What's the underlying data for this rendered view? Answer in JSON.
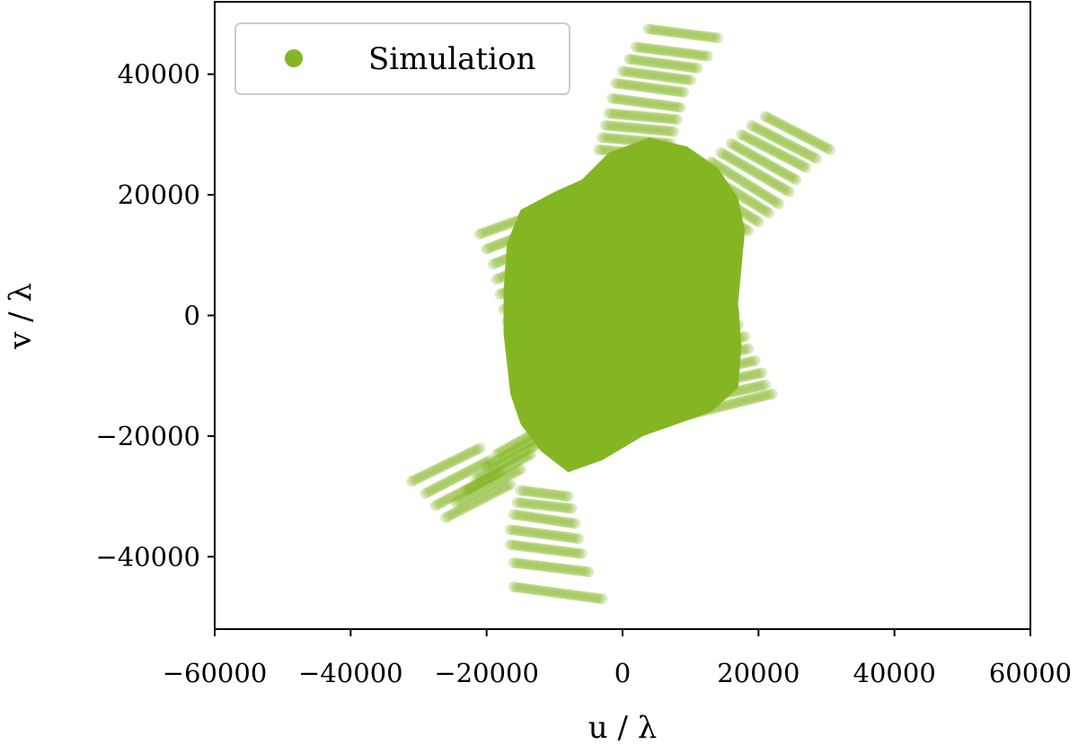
{
  "chart_data": {
    "type": "scatter",
    "title": "",
    "xlabel": "u / λ",
    "ylabel": "v / λ",
    "xlim": [
      -60000,
      60000
    ],
    "ylim": [
      -52000,
      52000
    ],
    "xticks": [
      -60000,
      -40000,
      -20000,
      0,
      20000,
      40000,
      60000
    ],
    "xtick_labels": [
      "−60000",
      "−40000",
      "−20000",
      "0",
      "20000",
      "40000",
      "60000"
    ],
    "yticks": [
      -40000,
      -20000,
      0,
      20000,
      40000
    ],
    "ytick_labels": [
      "−40000",
      "−20000",
      "0",
      "20000",
      "40000"
    ],
    "grid": false,
    "legend": {
      "position": "top-left",
      "entries": [
        "Simulation"
      ]
    },
    "colors": {
      "series": "#84b624"
    },
    "marker_alpha": 0.3,
    "series": [
      {
        "name": "Simulation",
        "tracks": [
          {
            "from": [
              3800,
              47500
            ],
            "to": [
              14000,
              46000
            ]
          },
          {
            "from": [
              2000,
              44500
            ],
            "to": [
              12500,
              43000
            ]
          },
          {
            "from": [
              1000,
              42500
            ],
            "to": [
              11000,
              41000
            ]
          },
          {
            "from": [
              0,
              40500
            ],
            "to": [
              10000,
              39000
            ]
          },
          {
            "from": [
              -1000,
              38500
            ],
            "to": [
              9000,
              37000
            ]
          },
          {
            "from": [
              -1500,
              36000
            ],
            "to": [
              8500,
              34500
            ]
          },
          {
            "from": [
              -2000,
              33500
            ],
            "to": [
              8000,
              32500
            ]
          },
          {
            "from": [
              -2500,
              31500
            ],
            "to": [
              7500,
              30500
            ]
          },
          {
            "from": [
              -3000,
              29500
            ],
            "to": [
              7000,
              28500
            ]
          },
          {
            "from": [
              -3500,
              27500
            ],
            "to": [
              6000,
              26500
            ]
          },
          {
            "from": [
              21000,
              33000
            ],
            "to": [
              30500,
              27500
            ]
          },
          {
            "from": [
              19000,
              31500
            ],
            "to": [
              28500,
              26000
            ]
          },
          {
            "from": [
              17500,
              30000
            ],
            "to": [
              27000,
              24500
            ]
          },
          {
            "from": [
              16000,
              28500
            ],
            "to": [
              25500,
              22500
            ]
          },
          {
            "from": [
              14500,
              27000
            ],
            "to": [
              24500,
              20500
            ]
          },
          {
            "from": [
              13000,
              25500
            ],
            "to": [
              23000,
              18500
            ]
          },
          {
            "from": [
              11500,
              24000
            ],
            "to": [
              21500,
              17000
            ]
          },
          {
            "from": [
              10000,
              22500
            ],
            "to": [
              20000,
              15500
            ]
          },
          {
            "from": [
              8500,
              21000
            ],
            "to": [
              18500,
              14000
            ]
          },
          {
            "from": [
              -21000,
              13500
            ],
            "to": [
              -6000,
              19500
            ]
          },
          {
            "from": [
              -20000,
              11000
            ],
            "to": [
              -5000,
              17500
            ]
          },
          {
            "from": [
              -19000,
              8500
            ],
            "to": [
              -4000,
              15500
            ]
          },
          {
            "from": [
              -18500,
              6000
            ],
            "to": [
              -3500,
              13000
            ]
          },
          {
            "from": [
              -18000,
              3500
            ],
            "to": [
              -3000,
              10500
            ]
          },
          {
            "from": [
              -17500,
              1000
            ],
            "to": [
              -2500,
              8000
            ]
          },
          {
            "from": [
              -17000,
              -1000
            ],
            "to": [
              -2000,
              5500
            ]
          },
          {
            "from": [
              -31000,
              -27500
            ],
            "to": [
              -21000,
              -22000
            ]
          },
          {
            "from": [
              -29000,
              -29500
            ],
            "to": [
              -19500,
              -24000
            ]
          },
          {
            "from": [
              -27500,
              -31500
            ],
            "to": [
              -18000,
              -26000
            ]
          },
          {
            "from": [
              -26000,
              -33500
            ],
            "to": [
              -16500,
              -28000
            ]
          },
          {
            "from": [
              -24500,
              -31000
            ],
            "to": [
              -15000,
              -25500
            ]
          },
          {
            "from": [
              -23000,
              -29000
            ],
            "to": [
              -13500,
              -23000
            ]
          },
          {
            "from": [
              -21500,
              -27000
            ],
            "to": [
              -12000,
              -21000
            ]
          },
          {
            "from": [
              -20000,
              -25000
            ],
            "to": [
              -10500,
              -19000
            ]
          },
          {
            "from": [
              -18500,
              -23000
            ],
            "to": [
              -9000,
              -17000
            ]
          },
          {
            "from": [
              -16000,
              -45000
            ],
            "to": [
              -3000,
              -47000
            ]
          },
          {
            "from": [
              -16000,
              -41000
            ],
            "to": [
              -5000,
              -42500
            ]
          },
          {
            "from": [
              -16500,
              -38000
            ],
            "to": [
              -6000,
              -39500
            ]
          },
          {
            "from": [
              -16500,
              -35500
            ],
            "to": [
              -6500,
              -37000
            ]
          },
          {
            "from": [
              -16000,
              -33000
            ],
            "to": [
              -7000,
              -34500
            ]
          },
          {
            "from": [
              -15500,
              -31000
            ],
            "to": [
              -7500,
              -32000
            ]
          },
          {
            "from": [
              -15000,
              -29000
            ],
            "to": [
              -8000,
              -30000
            ]
          },
          {
            "from": [
              6000,
              -17500
            ],
            "to": [
              22000,
              -13000
            ]
          },
          {
            "from": [
              5000,
              -15500
            ],
            "to": [
              21000,
              -11500
            ]
          },
          {
            "from": [
              4000,
              -13500
            ],
            "to": [
              20500,
              -9500
            ]
          },
          {
            "from": [
              3000,
              -11500
            ],
            "to": [
              19500,
              -7500
            ]
          },
          {
            "from": [
              2500,
              -9500
            ],
            "to": [
              18500,
              -5500
            ]
          },
          {
            "from": [
              2000,
              -7500
            ],
            "to": [
              18000,
              -3500
            ]
          },
          {
            "from": [
              1500,
              -5500
            ],
            "to": [
              17000,
              -1500
            ]
          },
          {
            "from": [
              1000,
              -3500
            ],
            "to": [
              16500,
              500
            ]
          }
        ],
        "core": [
          [
            -17500,
            -3000
          ],
          [
            -17000,
            -8000
          ],
          [
            -16500,
            -13000
          ],
          [
            -15000,
            -18000
          ],
          [
            -12000,
            -22500
          ],
          [
            -8000,
            -26000
          ],
          [
            -3000,
            -24000
          ],
          [
            3000,
            -20000
          ],
          [
            8000,
            -18000
          ],
          [
            13000,
            -16000
          ],
          [
            17000,
            -12000
          ],
          [
            17500,
            -5000
          ],
          [
            17000,
            2000
          ],
          [
            17500,
            8000
          ],
          [
            18000,
            14000
          ],
          [
            17000,
            19500
          ],
          [
            14000,
            24500
          ],
          [
            9500,
            28000
          ],
          [
            4000,
            29500
          ],
          [
            -2000,
            27000
          ],
          [
            -6000,
            22500
          ],
          [
            -10000,
            20500
          ],
          [
            -15000,
            17500
          ],
          [
            -17000,
            12000
          ],
          [
            -17500,
            4000
          ]
        ]
      }
    ]
  }
}
